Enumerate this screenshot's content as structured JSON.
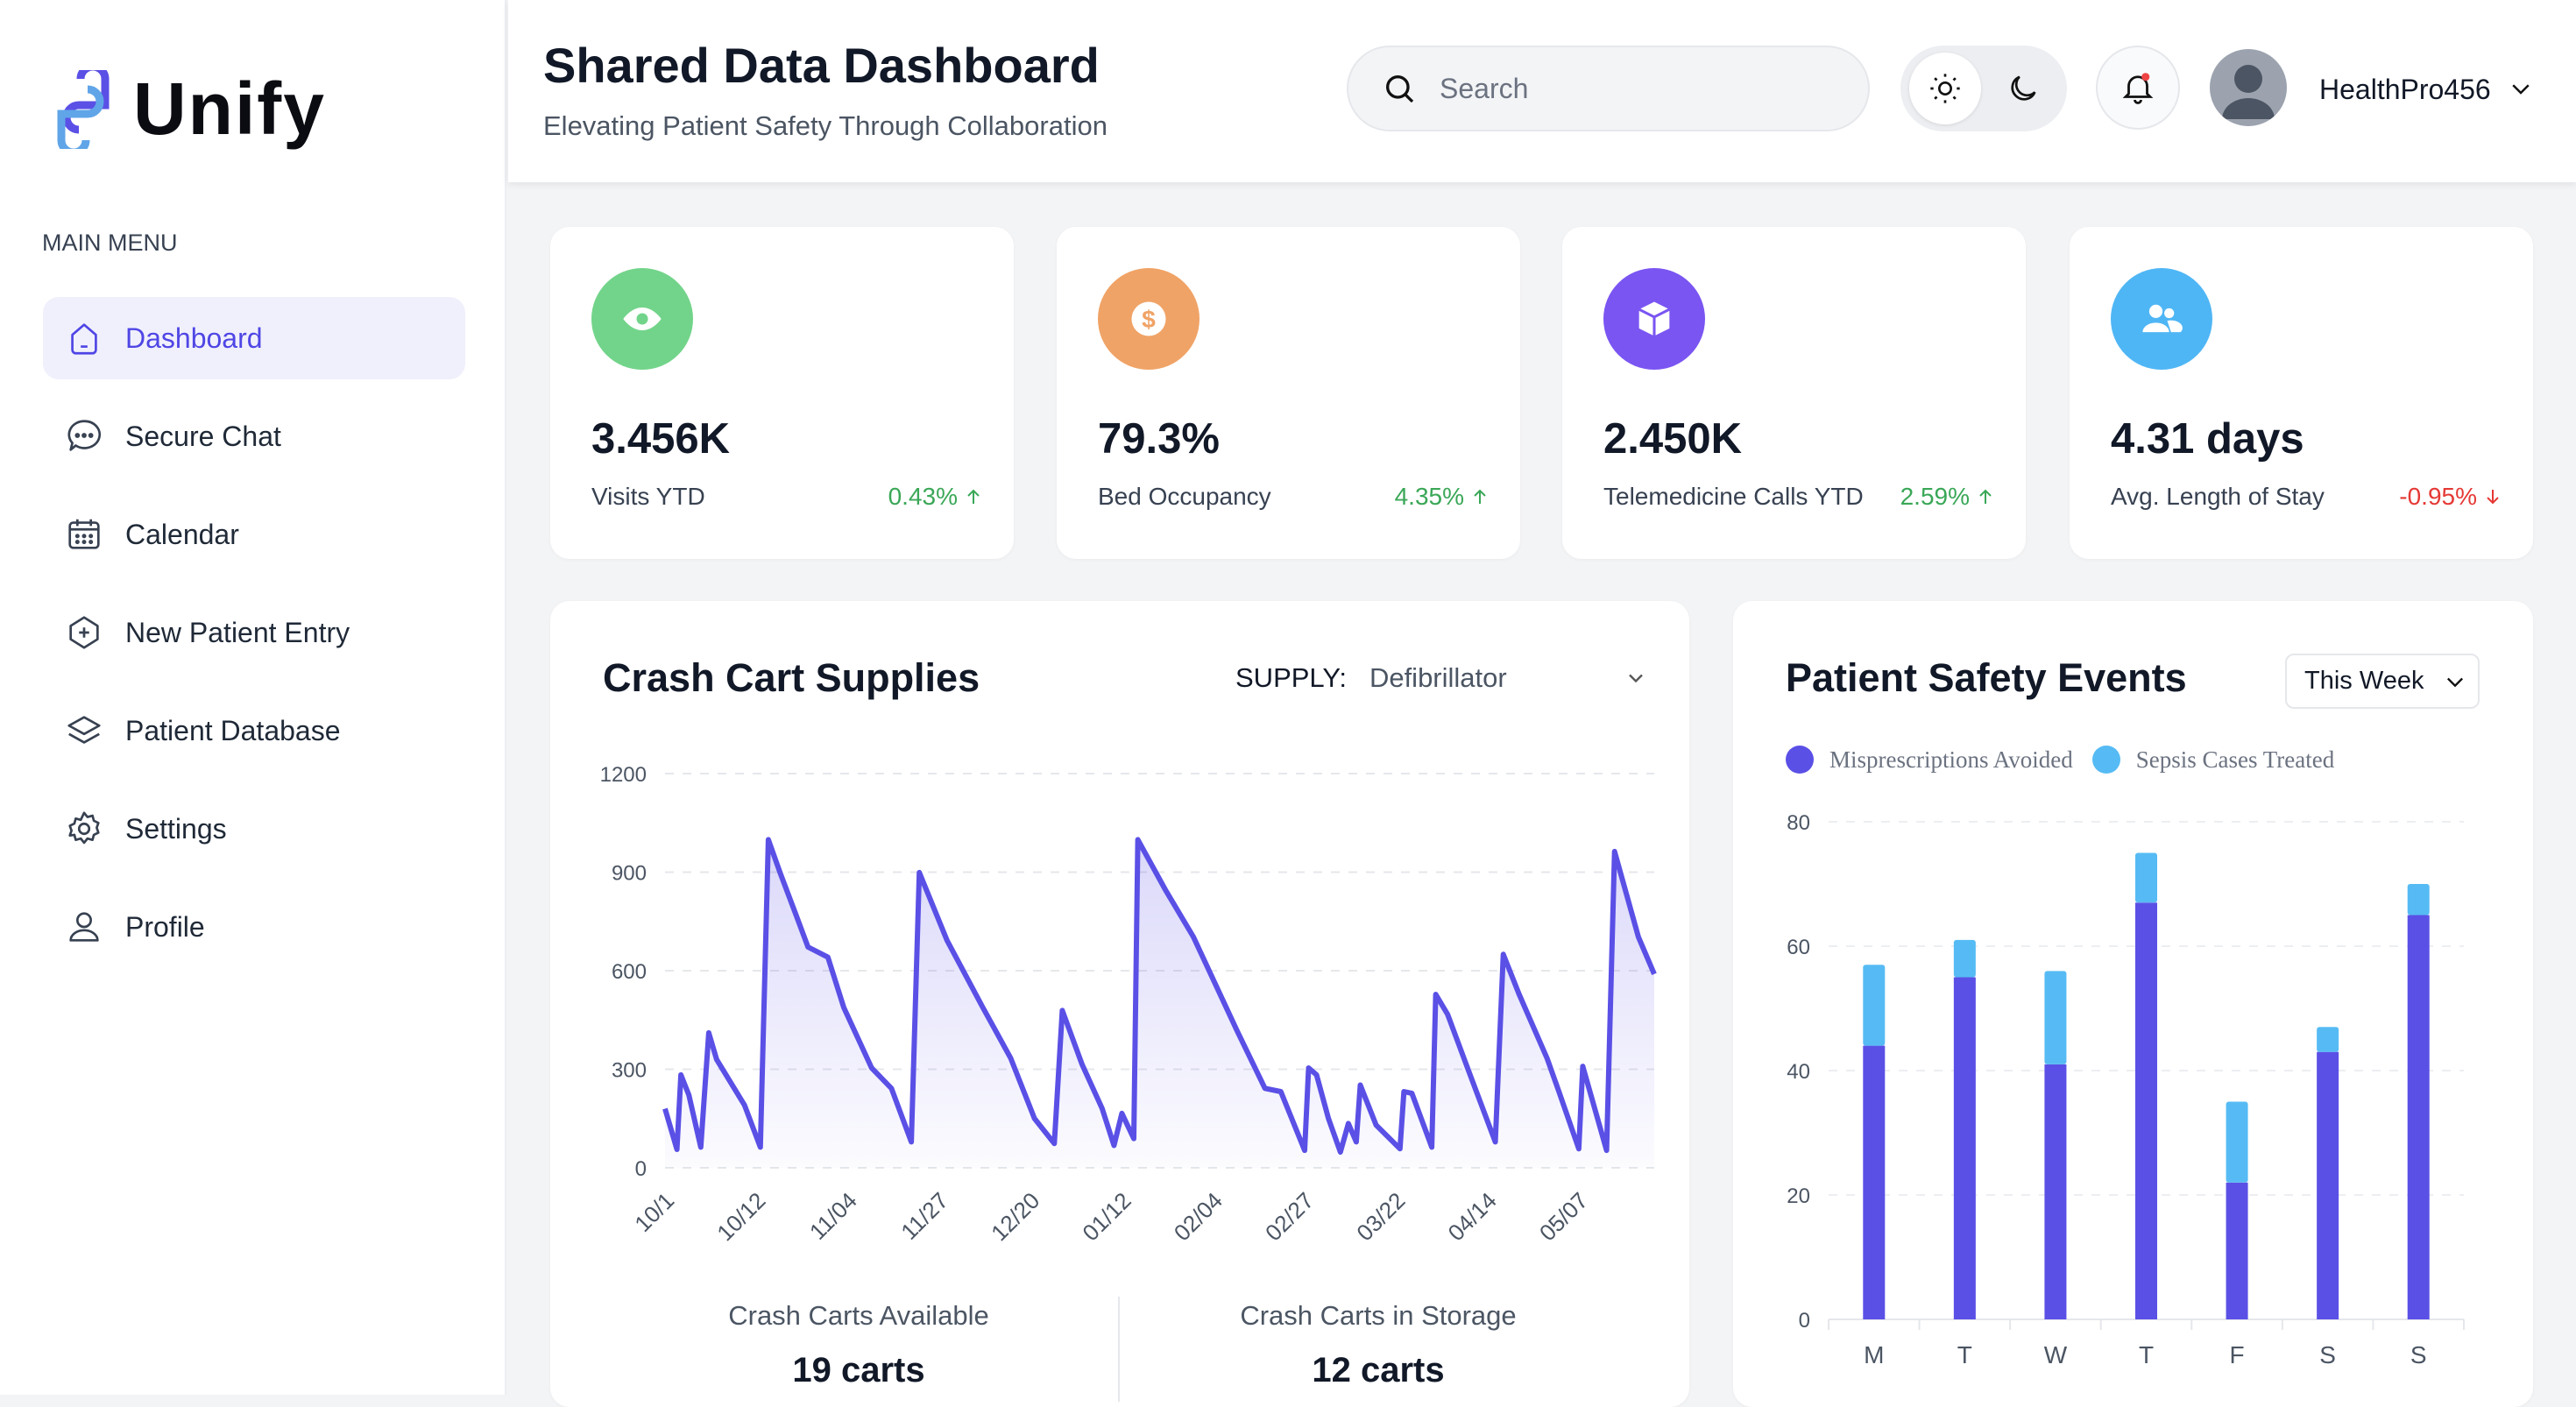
{
  "app": {
    "name": "Unify"
  },
  "sidebar": {
    "menu_title": "MAIN MENU",
    "items": [
      {
        "label": "Dashboard",
        "icon": "home-icon",
        "active": true
      },
      {
        "label": "Secure Chat",
        "icon": "chat-icon"
      },
      {
        "label": "Calendar",
        "icon": "calendar-icon"
      },
      {
        "label": "New Patient Entry",
        "icon": "plus-circle-icon"
      },
      {
        "label": "Patient Database",
        "icon": "layers-icon"
      },
      {
        "label": "Settings",
        "icon": "gear-icon"
      },
      {
        "label": "Profile",
        "icon": "user-icon"
      }
    ]
  },
  "header": {
    "title": "Shared Data Dashboard",
    "subtitle": "Elevating Patient Safety Through Collaboration",
    "search_placeholder": "Search",
    "username": "HealthPro456"
  },
  "kpis": [
    {
      "value": "3.456K",
      "label": "Visits YTD",
      "change": "0.43%",
      "trend": "up",
      "icon": "eye-icon",
      "color": "#72d48a"
    },
    {
      "value": "79.3%",
      "label": "Bed Occupancy",
      "change": "4.35%",
      "trend": "up",
      "icon": "dollar-icon",
      "color": "#f0a366"
    },
    {
      "value": "2.450K",
      "label": "Telemedicine Calls YTD",
      "change": "2.59%",
      "trend": "up",
      "icon": "box-icon",
      "color": "#7a55f2"
    },
    {
      "value": "4.31 days",
      "label": "Avg. Length of Stay",
      "change": "-0.95%",
      "trend": "down",
      "icon": "users-icon",
      "color": "#4fb6f5"
    }
  ],
  "colors": {
    "accent": "#5a50e6",
    "secondary": "#56bbf4",
    "up": "#3aa757",
    "down": "#e53935"
  },
  "crash_cart": {
    "title": "Crash Cart Supplies",
    "supply_label": "SUPPLY:",
    "supply_value": "Defibrillator",
    "stats": [
      {
        "label": "Crash Carts Available",
        "value": "19 carts"
      },
      {
        "label": "Crash Carts in Storage",
        "value": "12 carts"
      }
    ]
  },
  "safety": {
    "title": "Patient Safety Events",
    "period": "This Week"
  },
  "chart_data": [
    {
      "type": "area",
      "ylim": [
        0,
        1200
      ],
      "yticks": [
        0,
        300,
        600,
        900,
        1200
      ],
      "grid": true,
      "xtick_labels": [
        "10/1",
        "10/12",
        "11/04",
        "11/27",
        "12/20",
        "01/12",
        "02/04",
        "02/27",
        "03/22",
        "04/14",
        "05/07"
      ],
      "xtick_index": [
        0,
        23,
        46,
        69,
        92,
        115,
        138,
        161,
        184,
        207,
        230
      ],
      "points": [
        [
          0,
          180
        ],
        [
          3,
          56
        ],
        [
          4,
          283
        ],
        [
          6,
          222
        ],
        [
          9,
          63
        ],
        [
          11,
          411
        ],
        [
          13,
          330
        ],
        [
          20,
          191
        ],
        [
          24,
          63
        ],
        [
          26,
          999
        ],
        [
          29,
          897
        ],
        [
          33,
          769
        ],
        [
          36,
          672
        ],
        [
          41,
          641
        ],
        [
          45,
          488
        ],
        [
          52,
          304
        ],
        [
          57,
          242
        ],
        [
          62,
          79
        ],
        [
          64,
          899
        ],
        [
          71,
          692
        ],
        [
          80,
          488
        ],
        [
          87,
          334
        ],
        [
          93,
          150
        ],
        [
          98,
          74
        ],
        [
          100,
          479
        ],
        [
          105,
          314
        ],
        [
          110,
          181
        ],
        [
          113,
          68
        ],
        [
          115,
          166
        ],
        [
          118,
          89
        ],
        [
          119,
          999
        ],
        [
          126,
          845
        ],
        [
          133,
          703
        ],
        [
          144,
          417
        ],
        [
          151,
          242
        ],
        [
          155,
          232
        ],
        [
          161,
          53
        ],
        [
          162,
          304
        ],
        [
          164,
          283
        ],
        [
          167,
          150
        ],
        [
          170,
          48
        ],
        [
          172,
          135
        ],
        [
          174,
          79
        ],
        [
          175,
          252
        ],
        [
          179,
          130
        ],
        [
          185,
          58
        ],
        [
          186,
          232
        ],
        [
          188,
          227
        ],
        [
          193,
          63
        ],
        [
          194,
          528
        ],
        [
          197,
          467
        ],
        [
          202,
          304
        ],
        [
          209,
          79
        ],
        [
          211,
          650
        ],
        [
          215,
          528
        ],
        [
          222,
          334
        ],
        [
          225,
          232
        ],
        [
          230,
          58
        ],
        [
          231,
          309
        ],
        [
          237,
          53
        ],
        [
          239,
          963
        ],
        [
          245,
          703
        ],
        [
          249,
          590
        ]
      ]
    },
    {
      "type": "bar",
      "stacked": true,
      "categories": [
        "M",
        "T",
        "W",
        "T",
        "F",
        "S",
        "S"
      ],
      "ylim": [
        0,
        80
      ],
      "yticks": [
        0,
        20,
        40,
        60,
        80
      ],
      "grid": true,
      "legend": "top-left",
      "series": [
        {
          "name": "Misprescriptions Avoided",
          "values": [
            44,
            55,
            41,
            67,
            22,
            43,
            65
          ],
          "color": "#5a50e6"
        },
        {
          "name": "Sepsis Cases Treated",
          "values": [
            13,
            6,
            15,
            8,
            13,
            4,
            5
          ],
          "color": "#56bbf4"
        }
      ]
    }
  ]
}
